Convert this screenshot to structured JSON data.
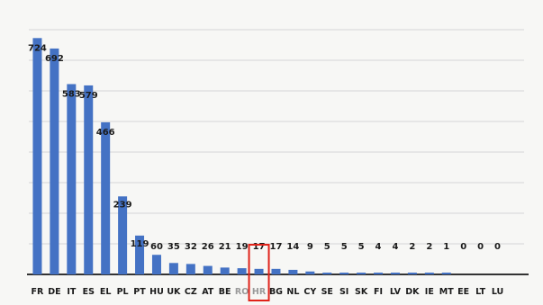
{
  "chart_data": {
    "type": "bar",
    "title": "",
    "xlabel": "",
    "ylabel": "",
    "ylim": [
      0,
      780
    ],
    "grid": true,
    "legend": "none",
    "bar_color": "#4472c4",
    "highlight_color": "#e0231a",
    "highlight_category": "HR",
    "categories": [
      "FR",
      "DE",
      "IT",
      "ES",
      "EL",
      "PL",
      "PT",
      "HU",
      "UK",
      "CZ",
      "AT",
      "BE",
      "RO",
      "HR",
      "BG",
      "NL",
      "CY",
      "SE",
      "SI",
      "SK",
      "FI",
      "LV",
      "DK",
      "IE",
      "MT",
      "EE",
      "LT",
      "LU"
    ],
    "values": [
      724,
      692,
      583,
      579,
      466,
      239,
      119,
      60,
      35,
      32,
      26,
      21,
      19,
      17,
      17,
      14,
      9,
      5,
      5,
      5,
      4,
      4,
      2,
      2,
      1,
      0,
      0,
      0
    ]
  }
}
